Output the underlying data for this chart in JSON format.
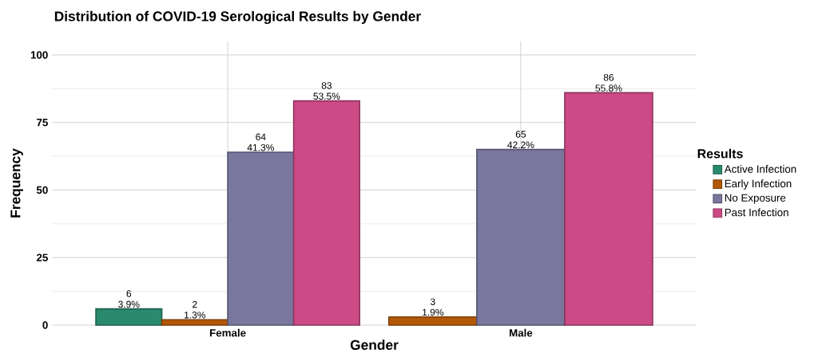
{
  "chart_data": {
    "type": "bar",
    "title": "Distribution of COVID-19 Serological Results by Gender",
    "xlabel": "Gender",
    "ylabel": "Frequency",
    "legend_title": "Results",
    "categories": [
      "Female",
      "Male"
    ],
    "series": [
      {
        "name": "Active Infection",
        "color": "#2a8a6e",
        "values": [
          6,
          null
        ],
        "value_labels": [
          "6 3.9%",
          null
        ]
      },
      {
        "name": "Early Infection",
        "color": "#b35806",
        "values": [
          2,
          3
        ],
        "value_labels": [
          "2 1.3%",
          "3 1.9%"
        ]
      },
      {
        "name": "No Exposure",
        "color": "#7a779e",
        "values": [
          64,
          65
        ],
        "value_labels": [
          "64 41.3%",
          "65 42.2%"
        ]
      },
      {
        "name": "Past Infection",
        "color": "#cc4a85",
        "values": [
          83,
          86
        ],
        "value_labels": [
          "83 53.5%",
          "86 55.8%"
        ]
      }
    ],
    "ylim": [
      0,
      105
    ],
    "yticks": [
      0,
      25,
      50,
      75,
      100
    ],
    "grid": true,
    "legend": "right"
  }
}
